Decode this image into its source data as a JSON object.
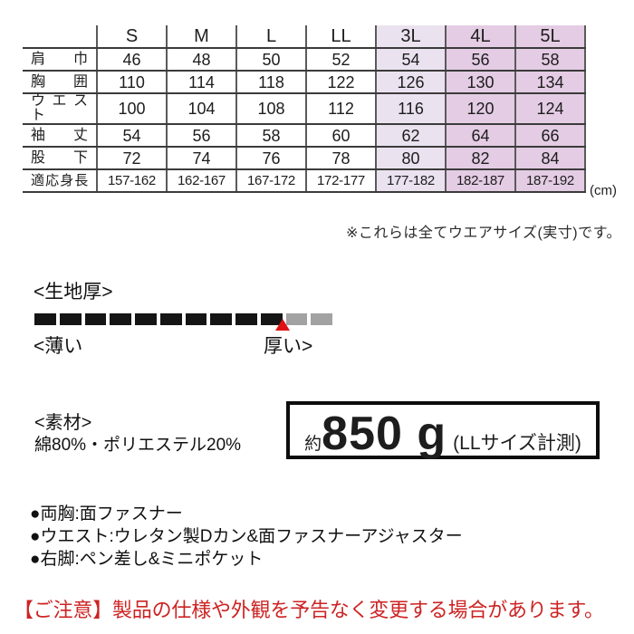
{
  "table": {
    "columns": [
      "S",
      "M",
      "L",
      "LL",
      "3L",
      "4L",
      "5L"
    ],
    "rows": [
      {
        "label": "肩巾",
        "values": [
          "46",
          "48",
          "50",
          "52",
          "54",
          "56",
          "58"
        ]
      },
      {
        "label": "胸囲",
        "values": [
          "110",
          "114",
          "118",
          "122",
          "126",
          "130",
          "134"
        ]
      },
      {
        "label": "ウエスト",
        "values": [
          "100",
          "104",
          "108",
          "112",
          "116",
          "120",
          "124"
        ]
      },
      {
        "label": "袖丈",
        "values": [
          "54",
          "56",
          "58",
          "60",
          "62",
          "64",
          "66"
        ]
      },
      {
        "label": "股下",
        "values": [
          "72",
          "74",
          "76",
          "78",
          "80",
          "82",
          "84"
        ]
      },
      {
        "label": "適応身長",
        "values": [
          "157-162",
          "162-167",
          "167-172",
          "172-177",
          "177-182",
          "182-187",
          "187-192"
        ]
      }
    ],
    "unit": "(cm)",
    "highlight_light": "#ebe2f0",
    "highlight_dark": "#e4cce4"
  },
  "note": "※これらは全てウエアサイズ(実寸)です。",
  "fabric": {
    "title": "<生地厚>",
    "thin_label": "<薄い",
    "thick_label": "厚い>",
    "segments_total": 12,
    "segments_filled": 10,
    "marker_color": "#de1212",
    "filled_color": "#151515",
    "empty_color": "#a2a2a2"
  },
  "material": {
    "title": "<素材>",
    "value": "綿80%・ポリエステル20%"
  },
  "weight": {
    "prefix": "約",
    "value": "850 g",
    "suffix": "(LLサイズ計測)"
  },
  "features": [
    "●両胸:面ファスナー",
    "●ウエスト:ウレタン製Dカン&面ファスナーアジャスター",
    "●右脚:ペン差し&ミニポケット"
  ],
  "warning": {
    "text": "【ご注意】製品の仕様や外観を予告なく変更する場合があります。",
    "color": "#cd2323"
  }
}
